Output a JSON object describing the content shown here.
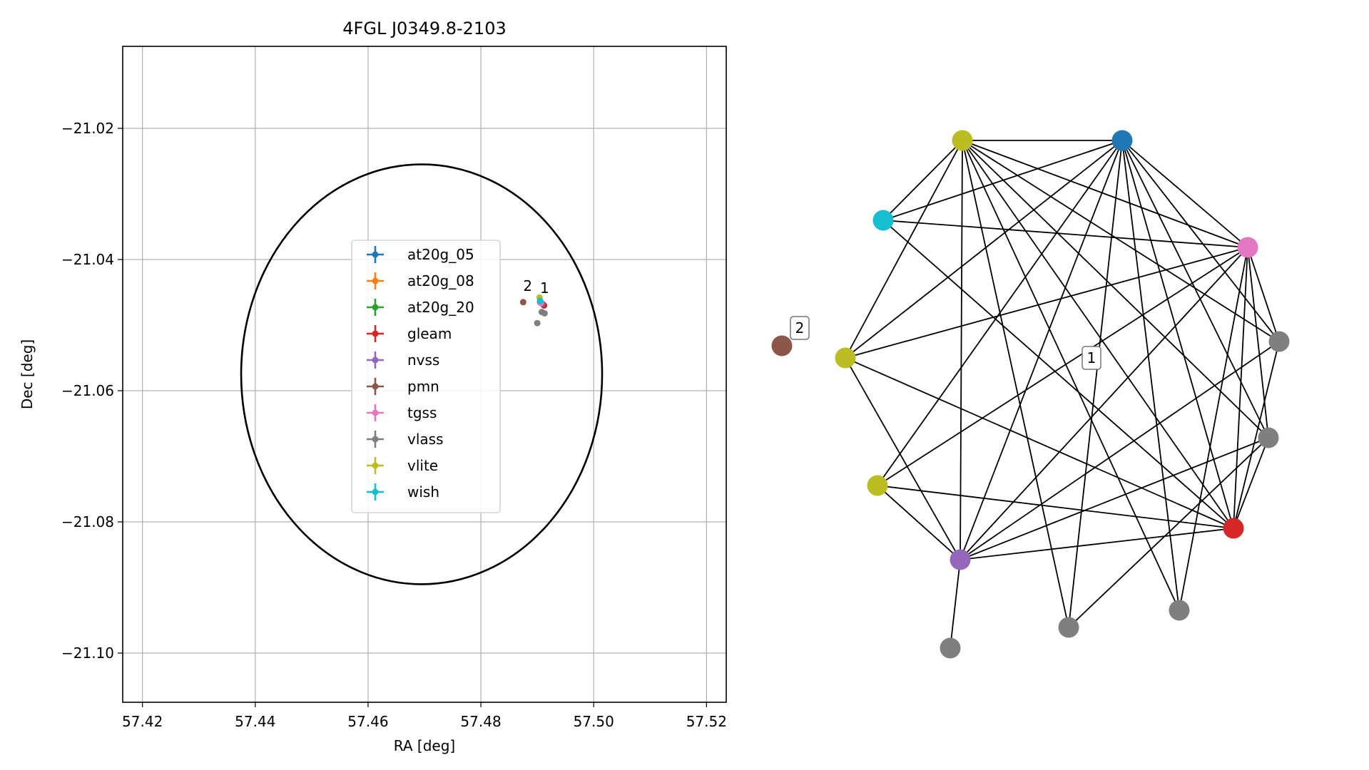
{
  "chart_data": [
    {
      "type": "scatter",
      "title": "4FGL J0349.8-2103",
      "xlabel": "RA [deg]",
      "ylabel": "Dec [deg]",
      "xlim": [
        57.4165,
        57.5235
      ],
      "ylim": [
        -21.1075,
        -21.0075
      ],
      "xticks": [
        57.42,
        57.44,
        57.46,
        57.48,
        57.5,
        57.52
      ],
      "xtick_labels": [
        "57.42",
        "57.44",
        "57.46",
        "57.48",
        "57.50",
        "57.52"
      ],
      "yticks": [
        -21.02,
        -21.04,
        -21.06,
        -21.08,
        -21.1
      ],
      "ytick_labels": [
        "−21.02",
        "−21.04",
        "−21.06",
        "−21.08",
        "−21.10"
      ],
      "grid": true,
      "legend_position": "center",
      "circle": {
        "center_ra": 57.4695,
        "center_dec": -21.0575,
        "radius_deg": 0.032
      },
      "series": [
        {
          "name": "at20g_05",
          "color": "#1f77b4",
          "x": [
            57.4905
          ],
          "y": [
            -21.0465
          ]
        },
        {
          "name": "at20g_08",
          "color": "#ff7f0e",
          "x": [
            57.491
          ],
          "y": [
            -21.0468
          ]
        },
        {
          "name": "at20g_20",
          "color": "#2ca02c",
          "x": [
            57.4907
          ],
          "y": [
            -21.0466
          ]
        },
        {
          "name": "gleam",
          "color": "#d62728",
          "x": [
            57.4912
          ],
          "y": [
            -21.047
          ]
        },
        {
          "name": "nvss",
          "color": "#9467bd",
          "x": [
            57.4908
          ],
          "y": [
            -21.0467
          ]
        },
        {
          "name": "pmn",
          "color": "#8c564b",
          "x": [
            57.4875
          ],
          "y": [
            -21.0465
          ]
        },
        {
          "name": "tgss",
          "color": "#e377c2",
          "x": [
            57.4906
          ],
          "y": [
            -21.0466
          ]
        },
        {
          "name": "vlass",
          "color": "#7f7f7f",
          "x": [
            57.4908,
            57.4913,
            57.49
          ],
          "y": [
            -21.048,
            -21.0482,
            -21.0497
          ]
        },
        {
          "name": "vlite",
          "color": "#bcbd22",
          "x": [
            57.4904
          ],
          "y": [
            -21.0458
          ]
        },
        {
          "name": "wish",
          "color": "#17becf",
          "x": [
            57.4905
          ],
          "y": [
            -21.0463
          ]
        }
      ],
      "annotations": [
        {
          "text": "2",
          "x": 57.4883,
          "y": -21.0448
        },
        {
          "text": "1",
          "x": 57.4913,
          "y": -21.0451
        }
      ]
    },
    {
      "type": "network",
      "nodes": [
        {
          "id": "vlite_top",
          "color": "#bcbd22"
        },
        {
          "id": "at20g",
          "color": "#1f77b4"
        },
        {
          "id": "wish",
          "color": "#17becf"
        },
        {
          "id": "tgss",
          "color": "#e377c2"
        },
        {
          "id": "vlass_r1",
          "color": "#7f7f7f"
        },
        {
          "id": "vlite_l",
          "color": "#bcbd22"
        },
        {
          "id": "vlass_r2",
          "color": "#7f7f7f"
        },
        {
          "id": "vlite_bl",
          "color": "#bcbd22"
        },
        {
          "id": "gleam",
          "color": "#d62728"
        },
        {
          "id": "nvss",
          "color": "#9467bd"
        },
        {
          "id": "vlass_b1",
          "color": "#7f7f7f"
        },
        {
          "id": "vlass_b2",
          "color": "#7f7f7f"
        },
        {
          "id": "vlass_b3",
          "color": "#7f7f7f"
        },
        {
          "id": "pmn",
          "color": "#8c564b"
        }
      ],
      "edges": [
        [
          "vlite_top",
          "at20g"
        ],
        [
          "vlite_top",
          "wish"
        ],
        [
          "vlite_top",
          "tgss"
        ],
        [
          "vlite_top",
          "vlass_r1"
        ],
        [
          "vlite_top",
          "vlite_l"
        ],
        [
          "vlite_top",
          "vlass_r2"
        ],
        [
          "vlite_top",
          "gleam"
        ],
        [
          "vlite_top",
          "nvss"
        ],
        [
          "vlite_top",
          "vlass_b2"
        ],
        [
          "vlite_top",
          "vlass_b3"
        ],
        [
          "at20g",
          "wish"
        ],
        [
          "at20g",
          "tgss"
        ],
        [
          "at20g",
          "vlass_r1"
        ],
        [
          "at20g",
          "vlite_l"
        ],
        [
          "at20g",
          "vlass_r2"
        ],
        [
          "at20g",
          "vlite_bl"
        ],
        [
          "at20g",
          "gleam"
        ],
        [
          "at20g",
          "nvss"
        ],
        [
          "at20g",
          "vlass_b2"
        ],
        [
          "at20g",
          "vlass_b3"
        ],
        [
          "wish",
          "tgss"
        ],
        [
          "wish",
          "gleam"
        ],
        [
          "tgss",
          "vlite_l"
        ],
        [
          "tgss",
          "vlass_r1"
        ],
        [
          "tgss",
          "vlass_r2"
        ],
        [
          "tgss",
          "vlite_bl"
        ],
        [
          "tgss",
          "gleam"
        ],
        [
          "tgss",
          "nvss"
        ],
        [
          "tgss",
          "vlass_b3"
        ],
        [
          "vlite_l",
          "gleam"
        ],
        [
          "vlite_l",
          "nvss"
        ],
        [
          "vlass_r1",
          "nvss"
        ],
        [
          "vlass_r2",
          "nvss"
        ],
        [
          "vlass_r2",
          "vlass_b2"
        ],
        [
          "vlite_bl",
          "gleam"
        ],
        [
          "vlite_bl",
          "nvss"
        ],
        [
          "gleam",
          "nvss"
        ],
        [
          "gleam",
          "vlass_r1"
        ],
        [
          "gleam",
          "vlass_r2"
        ],
        [
          "nvss",
          "vlass_b1"
        ]
      ],
      "component_labels": [
        {
          "text": "1",
          "node": "component_1"
        },
        {
          "text": "2",
          "node": "pmn"
        }
      ]
    }
  ]
}
